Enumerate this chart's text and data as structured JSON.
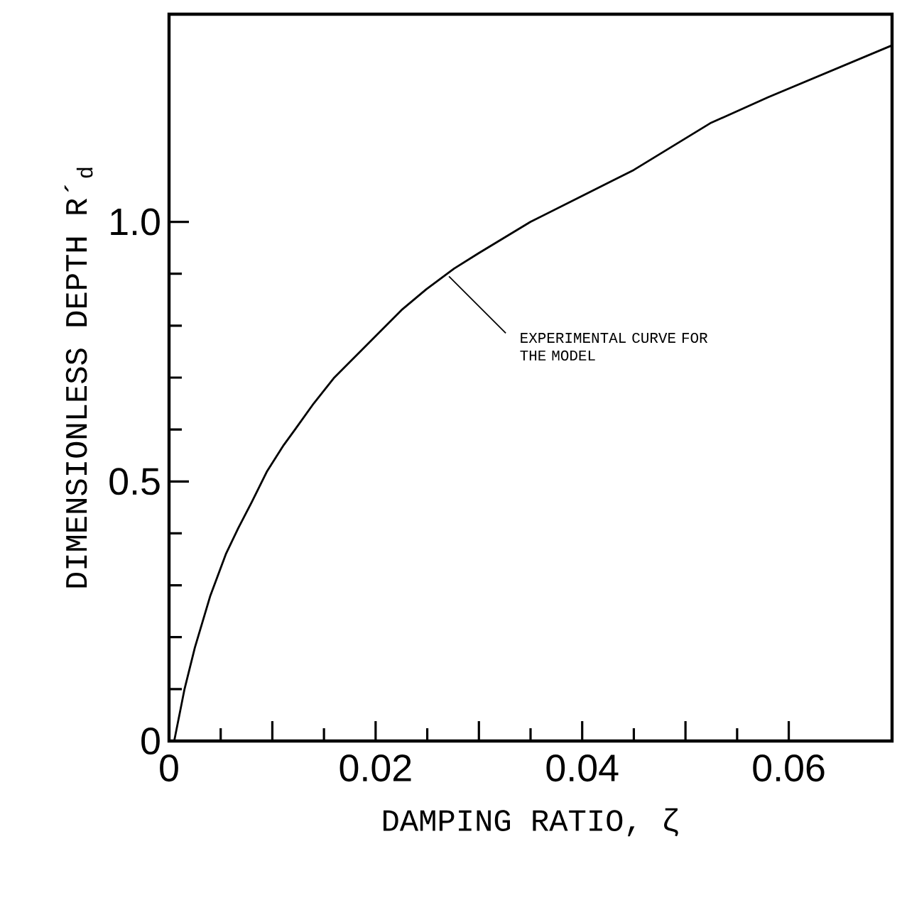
{
  "chart_data": {
    "type": "line",
    "xlabel": "DAMPING RATIO, ζ",
    "ylabel": "DIMENSIONLESS DEPTH R´$_{d}$",
    "x": [
      0.0005,
      0.0015,
      0.0025,
      0.004,
      0.0055,
      0.0067,
      0.008,
      0.0095,
      0.0111,
      0.0122,
      0.014,
      0.016,
      0.018,
      0.02,
      0.0225,
      0.0249,
      0.0276,
      0.03,
      0.035,
      0.04,
      0.045,
      0.0524,
      0.058,
      0.064,
      0.07
    ],
    "values": [
      0,
      0.1,
      0.18,
      0.28,
      0.36,
      0.41,
      0.46,
      0.52,
      0.57,
      0.6,
      0.65,
      0.7,
      0.74,
      0.78,
      0.83,
      0.87,
      0.91,
      0.94,
      1.0,
      1.05,
      1.1,
      1.19,
      1.24,
      1.29,
      1.34
    ],
    "color": "#000000",
    "xlim": [
      0,
      0.07
    ],
    "ylim": [
      0,
      1.4
    ],
    "xticks": [
      0,
      {
        "value": 0.01,
        "label": null
      },
      0.02,
      {
        "value": 0.03,
        "label": null
      },
      0.04,
      {
        "value": 0.05,
        "label": null
      },
      0.06
    ],
    "yticks": [
      0,
      0.5,
      {
        "value": 1.0,
        "label": "1.0"
      }
    ],
    "annotations": [
      {
        "text": "EXPERIMENTAL CURVE FOR THE MODEL",
        "x": 0.0271,
        "y": 0.895
      }
    ]
  }
}
